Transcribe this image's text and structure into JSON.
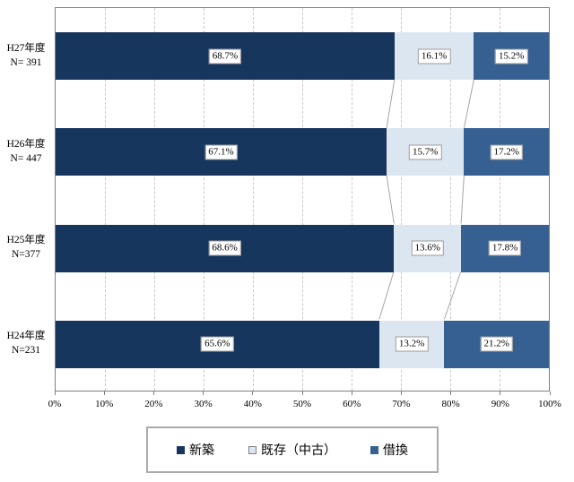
{
  "chart_data": {
    "type": "bar",
    "variant": "horizontal-stacked",
    "title": "",
    "xlabel": "",
    "ylabel": "",
    "xlim": [
      0,
      100
    ],
    "x_ticks": [
      "0%",
      "10%",
      "20%",
      "30%",
      "40%",
      "50%",
      "60%",
      "70%",
      "80%",
      "90%",
      "100%"
    ],
    "grid": true,
    "legend_position": "bottom",
    "categories": [
      {
        "line1": "H27年度",
        "line2": "N= 391"
      },
      {
        "line1": "H26年度",
        "line2": "N= 447"
      },
      {
        "line1": "H25年度",
        "line2": "N=377"
      },
      {
        "line1": "H24年度",
        "line2": "N=231"
      }
    ],
    "series": [
      {
        "name": "新築",
        "color": "#17365D",
        "values": [
          68.7,
          67.1,
          68.6,
          65.6
        ]
      },
      {
        "name": "既存（中古）",
        "color": "#DCE6F1",
        "values": [
          16.1,
          15.7,
          13.6,
          13.2
        ]
      },
      {
        "name": "借換",
        "color": "#366092",
        "values": [
          15.2,
          17.2,
          17.8,
          21.2
        ]
      }
    ],
    "data_labels": [
      [
        "68.7%",
        "16.1%",
        "15.2%"
      ],
      [
        "67.1%",
        "15.7%",
        "17.2%"
      ],
      [
        "68.6%",
        "13.6%",
        "17.8%"
      ],
      [
        "65.6%",
        "13.2%",
        "21.2%"
      ]
    ],
    "colors": {
      "plot_border": "#808080",
      "gridline": "#c9c9c9",
      "connector_line": "#a6a6a6",
      "tick": "#808080",
      "label_box_border": "#9a9a9a",
      "legend_border": "#ababab"
    }
  }
}
